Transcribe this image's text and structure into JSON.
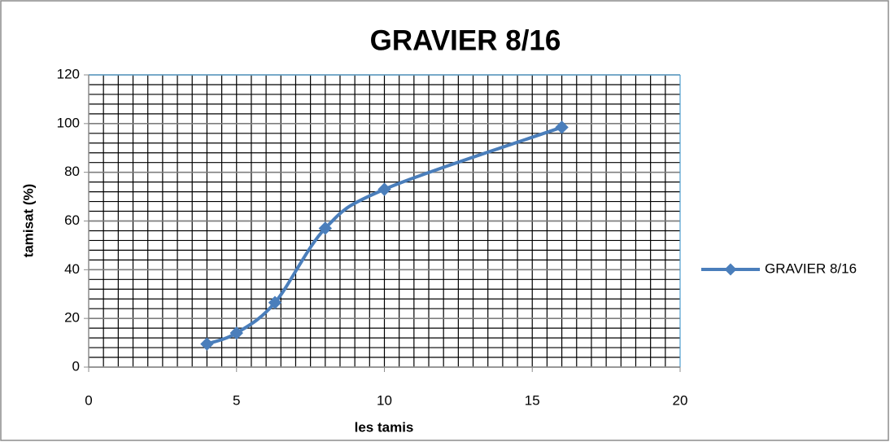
{
  "chart_data": {
    "type": "line",
    "title": "GRAVIER 8/16",
    "x_label": "les tamis",
    "y_label": "tamisat (%)",
    "x": [
      4,
      5,
      6.3,
      8,
      10,
      16
    ],
    "series": [
      {
        "name": "GRAVIER 8/16",
        "color": "#4a7ebb",
        "values": [
          9.5,
          14,
          26.5,
          57,
          73,
          98.5
        ]
      }
    ],
    "xlim": [
      0,
      20
    ],
    "xticks": [
      0,
      5,
      10,
      15,
      20
    ],
    "ylim": [
      0,
      120
    ],
    "yticks": [
      0,
      20,
      40,
      60,
      80,
      100,
      120
    ],
    "grid": true,
    "minor_grid": {
      "x": 0.5,
      "y": 4
    },
    "smooth": true,
    "legend": "right"
  }
}
